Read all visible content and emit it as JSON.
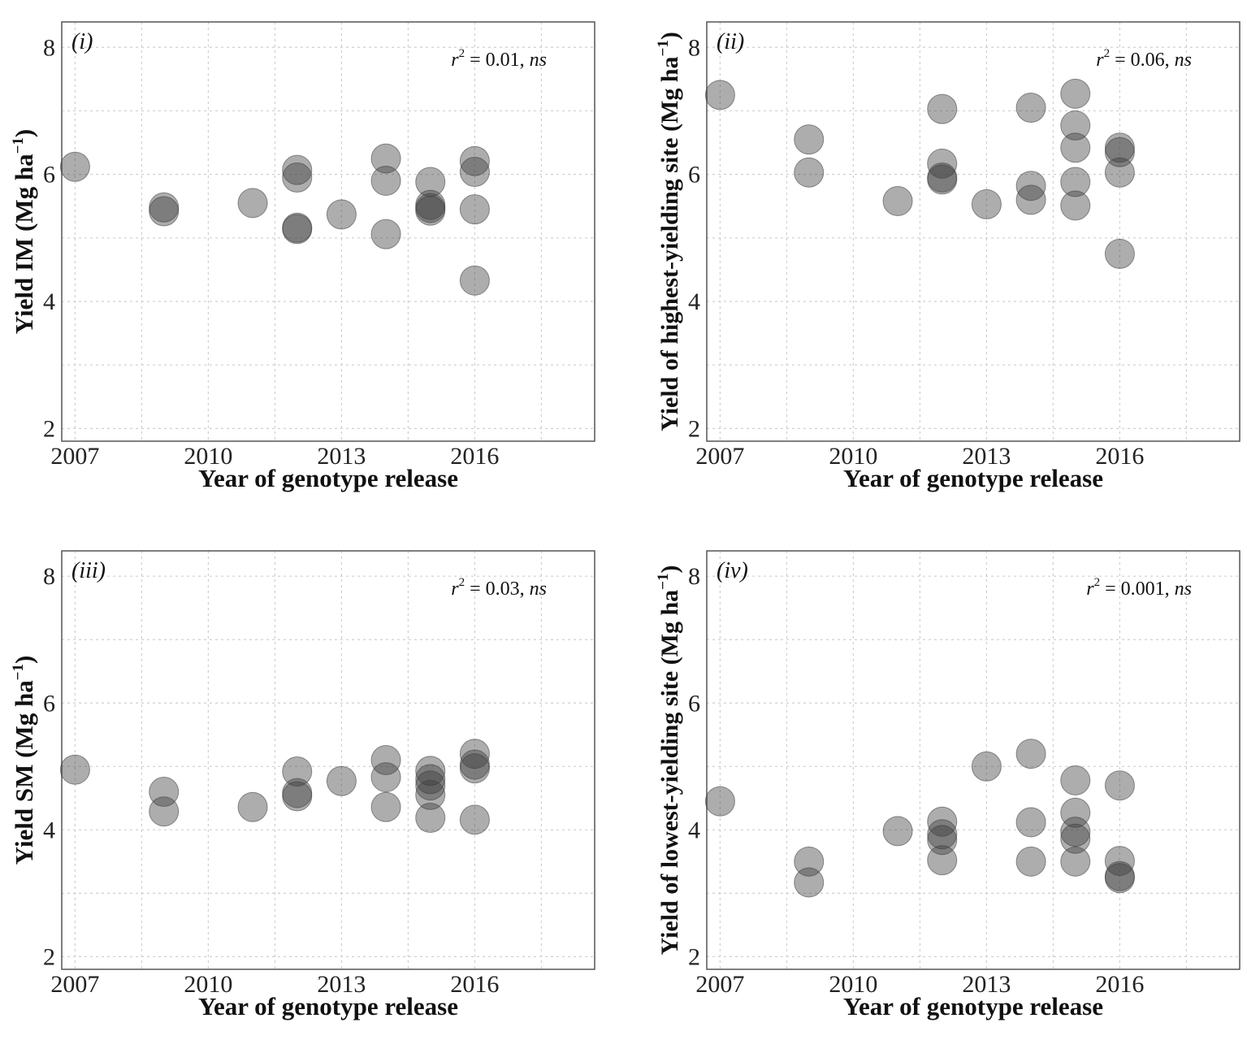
{
  "chart_data": [
    {
      "type": "scatter",
      "panel_label": "(i)",
      "stat_r2": "0.01",
      "stat_sig": "ns",
      "xlabel": "Year of genotype release",
      "ylabel": "Yield IM (Mg ha⁻¹)",
      "ylabel_main": "Yield IM (Mg ha",
      "ylabel_unit_exp": "−1",
      "ylabel_close": ")",
      "xlim": [
        2006.7,
        2018.7
      ],
      "ylim": [
        1.8,
        8.4
      ],
      "x_ticks": [
        "2007",
        "2010",
        "2013",
        "2016"
      ],
      "y_ticks": [
        "2",
        "4",
        "6",
        "8"
      ],
      "points": [
        {
          "x": 2007,
          "y": 6.12
        },
        {
          "x": 2009,
          "y": 5.48
        },
        {
          "x": 2009,
          "y": 5.42
        },
        {
          "x": 2011,
          "y": 5.55
        },
        {
          "x": 2012,
          "y": 6.07
        },
        {
          "x": 2012,
          "y": 5.95
        },
        {
          "x": 2012,
          "y": 5.16
        },
        {
          "x": 2012,
          "y": 5.14
        },
        {
          "x": 2013,
          "y": 5.37
        },
        {
          "x": 2014,
          "y": 6.25
        },
        {
          "x": 2014,
          "y": 5.9
        },
        {
          "x": 2014,
          "y": 5.06
        },
        {
          "x": 2015,
          "y": 5.88
        },
        {
          "x": 2015,
          "y": 5.52
        },
        {
          "x": 2015,
          "y": 5.47
        },
        {
          "x": 2015,
          "y": 5.43
        },
        {
          "x": 2016,
          "y": 6.21
        },
        {
          "x": 2016,
          "y": 6.04
        },
        {
          "x": 2016,
          "y": 5.45
        },
        {
          "x": 2016,
          "y": 4.33
        }
      ]
    },
    {
      "type": "scatter",
      "panel_label": "(ii)",
      "stat_r2": "0.06",
      "stat_sig": "ns",
      "xlabel": "Year of genotype release",
      "ylabel": "Yield of highest-yielding site (Mg ha⁻¹)",
      "ylabel_main": "Yield of highest-yielding site (Mg ha",
      "ylabel_unit_exp": "−1",
      "ylabel_close": ")",
      "xlim": [
        2006.7,
        2018.7
      ],
      "ylim": [
        1.8,
        8.4
      ],
      "x_ticks": [
        "2007",
        "2010",
        "2013",
        "2016"
      ],
      "y_ticks": [
        "2",
        "4",
        "6",
        "8"
      ],
      "points": [
        {
          "x": 2007,
          "y": 7.25
        },
        {
          "x": 2009,
          "y": 6.55
        },
        {
          "x": 2009,
          "y": 6.03
        },
        {
          "x": 2011,
          "y": 5.58
        },
        {
          "x": 2012,
          "y": 7.03
        },
        {
          "x": 2012,
          "y": 6.17
        },
        {
          "x": 2012,
          "y": 5.95
        },
        {
          "x": 2012,
          "y": 5.92
        },
        {
          "x": 2013,
          "y": 5.53
        },
        {
          "x": 2014,
          "y": 7.05
        },
        {
          "x": 2014,
          "y": 5.82
        },
        {
          "x": 2014,
          "y": 5.6
        },
        {
          "x": 2015,
          "y": 7.27
        },
        {
          "x": 2015,
          "y": 6.77
        },
        {
          "x": 2015,
          "y": 6.42
        },
        {
          "x": 2015,
          "y": 5.88
        },
        {
          "x": 2015,
          "y": 5.51
        },
        {
          "x": 2016,
          "y": 6.42
        },
        {
          "x": 2016,
          "y": 6.35
        },
        {
          "x": 2016,
          "y": 6.03
        },
        {
          "x": 2016,
          "y": 4.75
        }
      ]
    },
    {
      "type": "scatter",
      "panel_label": "(iii)",
      "stat_r2": "0.03",
      "stat_sig": "ns",
      "xlabel": "Year of genotype release",
      "ylabel": "Yield SM (Mg ha⁻¹)",
      "ylabel_main": "Yield SM (Mg ha",
      "ylabel_unit_exp": "−1",
      "ylabel_close": ")",
      "xlim": [
        2006.7,
        2018.7
      ],
      "ylim": [
        1.8,
        8.4
      ],
      "x_ticks": [
        "2007",
        "2010",
        "2013",
        "2016"
      ],
      "y_ticks": [
        "2",
        "4",
        "6",
        "8"
      ],
      "points": [
        {
          "x": 2007,
          "y": 4.95
        },
        {
          "x": 2009,
          "y": 4.6
        },
        {
          "x": 2009,
          "y": 4.29
        },
        {
          "x": 2011,
          "y": 4.36
        },
        {
          "x": 2012,
          "y": 4.92
        },
        {
          "x": 2012,
          "y": 4.58
        },
        {
          "x": 2012,
          "y": 4.53
        },
        {
          "x": 2013,
          "y": 4.77
        },
        {
          "x": 2014,
          "y": 5.1
        },
        {
          "x": 2014,
          "y": 4.83
        },
        {
          "x": 2014,
          "y": 4.36
        },
        {
          "x": 2015,
          "y": 4.93
        },
        {
          "x": 2015,
          "y": 4.8
        },
        {
          "x": 2015,
          "y": 4.7
        },
        {
          "x": 2015,
          "y": 4.55
        },
        {
          "x": 2015,
          "y": 4.19
        },
        {
          "x": 2016,
          "y": 5.2
        },
        {
          "x": 2016,
          "y": 5.03
        },
        {
          "x": 2016,
          "y": 4.97
        },
        {
          "x": 2016,
          "y": 4.16
        }
      ]
    },
    {
      "type": "scatter",
      "panel_label": "(iv)",
      "stat_r2": "0.001",
      "stat_sig": "ns",
      "xlabel": "Year of genotype release",
      "ylabel": "Yield of lowest-yielding site (Mg ha⁻¹)",
      "ylabel_main": "Yield of lowest-yielding site (Mg ha",
      "ylabel_unit_exp": "−1",
      "ylabel_close": ")",
      "xlim": [
        2006.7,
        2018.7
      ],
      "ylim": [
        1.8,
        8.4
      ],
      "x_ticks": [
        "2007",
        "2010",
        "2013",
        "2016"
      ],
      "y_ticks": [
        "2",
        "4",
        "6",
        "8"
      ],
      "points": [
        {
          "x": 2007,
          "y": 4.45
        },
        {
          "x": 2009,
          "y": 3.5
        },
        {
          "x": 2009,
          "y": 3.17
        },
        {
          "x": 2011,
          "y": 3.98
        },
        {
          "x": 2012,
          "y": 4.13
        },
        {
          "x": 2012,
          "y": 3.93
        },
        {
          "x": 2012,
          "y": 3.84
        },
        {
          "x": 2012,
          "y": 3.52
        },
        {
          "x": 2013,
          "y": 5.0
        },
        {
          "x": 2014,
          "y": 5.2
        },
        {
          "x": 2014,
          "y": 4.12
        },
        {
          "x": 2014,
          "y": 3.5
        },
        {
          "x": 2015,
          "y": 4.78
        },
        {
          "x": 2015,
          "y": 4.27
        },
        {
          "x": 2015,
          "y": 3.97
        },
        {
          "x": 2015,
          "y": 3.86
        },
        {
          "x": 2015,
          "y": 3.5
        },
        {
          "x": 2016,
          "y": 4.7
        },
        {
          "x": 2016,
          "y": 3.51
        },
        {
          "x": 2016,
          "y": 3.27
        },
        {
          "x": 2016,
          "y": 3.24
        }
      ]
    }
  ]
}
